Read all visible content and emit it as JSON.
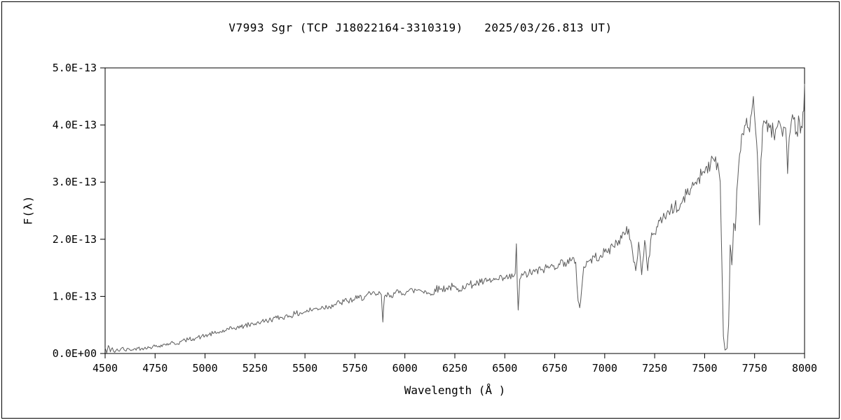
{
  "chart_data": {
    "type": "line",
    "title": "V7993 Sgr (TCP J18022164-3310319)   2025/03/26.813 UT)",
    "xlabel": "Wavelength (Å )",
    "ylabel": "F(λ)",
    "xlim": [
      4500,
      8000
    ],
    "ylim": [
      0,
      5
    ],
    "flux_scale": "1e-13",
    "grid": false,
    "legend": false,
    "line_color": "#5a5a5a",
    "axis_color": "#000000",
    "background_color": "#ffffff",
    "x_ticks": [
      4500,
      4750,
      5000,
      5250,
      5500,
      5750,
      6000,
      6250,
      6500,
      6750,
      7000,
      7250,
      7500,
      7750,
      8000
    ],
    "x_tick_labels": [
      "4500",
      "4750",
      "5000",
      "5250",
      "5500",
      "5750",
      "6000",
      "6250",
      "6500",
      "6750",
      "7000",
      "7250",
      "7500",
      "7750",
      "8000"
    ],
    "y_ticks": [
      0,
      1,
      2,
      3,
      4,
      5
    ],
    "y_tick_labels": [
      "0.0E+00",
      "1.0E-13",
      "2.0E-13",
      "3.0E-13",
      "4.0E-13",
      "5.0E-13"
    ],
    "render": {
      "sample_step": 5,
      "noise_base": 0.03,
      "noise_scale": 0.035,
      "seed": 42
    },
    "series": [
      {
        "name": "spectrum",
        "points": [
          [
            4500,
            0.1
          ],
          [
            4508,
            0.01
          ],
          [
            4516,
            0.14
          ],
          [
            4526,
            0.03
          ],
          [
            4536,
            0.1
          ],
          [
            4548,
            0.02
          ],
          [
            4560,
            0.08
          ],
          [
            4572,
            0.04
          ],
          [
            4584,
            0.1
          ],
          [
            4600,
            0.05
          ],
          [
            4620,
            0.08
          ],
          [
            4640,
            0.06
          ],
          [
            4660,
            0.1
          ],
          [
            4680,
            0.08
          ],
          [
            4700,
            0.11
          ],
          [
            4720,
            0.1
          ],
          [
            4740,
            0.13
          ],
          [
            4760,
            0.12
          ],
          [
            4780,
            0.15
          ],
          [
            4800,
            0.16
          ],
          [
            4820,
            0.17
          ],
          [
            4840,
            0.19
          ],
          [
            4860,
            0.17
          ],
          [
            4880,
            0.21
          ],
          [
            4900,
            0.23
          ],
          [
            4920,
            0.25
          ],
          [
            4940,
            0.26
          ],
          [
            4960,
            0.28
          ],
          [
            4980,
            0.29
          ],
          [
            5000,
            0.31
          ],
          [
            5020,
            0.33
          ],
          [
            5040,
            0.35
          ],
          [
            5060,
            0.36
          ],
          [
            5080,
            0.38
          ],
          [
            5100,
            0.4
          ],
          [
            5120,
            0.42
          ],
          [
            5140,
            0.44
          ],
          [
            5160,
            0.46
          ],
          [
            5180,
            0.46
          ],
          [
            5200,
            0.49
          ],
          [
            5220,
            0.5
          ],
          [
            5240,
            0.52
          ],
          [
            5260,
            0.54
          ],
          [
            5280,
            0.55
          ],
          [
            5300,
            0.57
          ],
          [
            5320,
            0.58
          ],
          [
            5340,
            0.61
          ],
          [
            5360,
            0.62
          ],
          [
            5380,
            0.63
          ],
          [
            5400,
            0.65
          ],
          [
            5420,
            0.66
          ],
          [
            5450,
            0.69
          ],
          [
            5480,
            0.71
          ],
          [
            5500,
            0.73
          ],
          [
            5530,
            0.76
          ],
          [
            5560,
            0.79
          ],
          [
            5590,
            0.81
          ],
          [
            5620,
            0.83
          ],
          [
            5650,
            0.86
          ],
          [
            5680,
            0.89
          ],
          [
            5710,
            0.92
          ],
          [
            5740,
            0.94
          ],
          [
            5770,
            0.97
          ],
          [
            5800,
            1.0
          ],
          [
            5830,
            1.03
          ],
          [
            5860,
            1.04
          ],
          [
            5882,
            1.03
          ],
          [
            5890,
            0.55
          ],
          [
            5898,
            1.0
          ],
          [
            5920,
            1.03
          ],
          [
            5950,
            1.05
          ],
          [
            5980,
            1.07
          ],
          [
            6010,
            1.09
          ],
          [
            6040,
            1.1
          ],
          [
            6070,
            1.12
          ],
          [
            6100,
            1.1
          ],
          [
            6130,
            1.02
          ],
          [
            6150,
            1.13
          ],
          [
            6180,
            1.13
          ],
          [
            6210,
            1.15
          ],
          [
            6240,
            1.17
          ],
          [
            6270,
            1.08
          ],
          [
            6290,
            1.19
          ],
          [
            6320,
            1.2
          ],
          [
            6350,
            1.22
          ],
          [
            6380,
            1.24
          ],
          [
            6410,
            1.26
          ],
          [
            6440,
            1.28
          ],
          [
            6470,
            1.29
          ],
          [
            6500,
            1.31
          ],
          [
            6520,
            1.33
          ],
          [
            6540,
            1.34
          ],
          [
            6552,
            1.4
          ],
          [
            6558,
            1.92
          ],
          [
            6563,
            1.15
          ],
          [
            6567,
            0.76
          ],
          [
            6575,
            1.3
          ],
          [
            6590,
            1.37
          ],
          [
            6620,
            1.4
          ],
          [
            6650,
            1.43
          ],
          [
            6680,
            1.46
          ],
          [
            6710,
            1.5
          ],
          [
            6740,
            1.53
          ],
          [
            6770,
            1.57
          ],
          [
            6800,
            1.6
          ],
          [
            6830,
            1.62
          ],
          [
            6855,
            1.6
          ],
          [
            6867,
            0.92
          ],
          [
            6875,
            0.8
          ],
          [
            6884,
            1.1
          ],
          [
            6895,
            1.52
          ],
          [
            6920,
            1.62
          ],
          [
            6950,
            1.68
          ],
          [
            6980,
            1.72
          ],
          [
            7010,
            1.78
          ],
          [
            7040,
            1.88
          ],
          [
            7070,
            1.98
          ],
          [
            7100,
            2.08
          ],
          [
            7120,
            2.18
          ],
          [
            7140,
            1.75
          ],
          [
            7155,
            1.45
          ],
          [
            7170,
            1.95
          ],
          [
            7185,
            1.38
          ],
          [
            7200,
            1.98
          ],
          [
            7215,
            1.45
          ],
          [
            7230,
            1.98
          ],
          [
            7245,
            2.1
          ],
          [
            7260,
            2.22
          ],
          [
            7275,
            2.32
          ],
          [
            7290,
            2.35
          ],
          [
            7310,
            2.45
          ],
          [
            7330,
            2.52
          ],
          [
            7350,
            2.58
          ],
          [
            7370,
            2.5
          ],
          [
            7390,
            2.68
          ],
          [
            7410,
            2.78
          ],
          [
            7430,
            2.88
          ],
          [
            7450,
            2.98
          ],
          [
            7470,
            3.08
          ],
          [
            7490,
            3.18
          ],
          [
            7510,
            3.28
          ],
          [
            7530,
            3.33
          ],
          [
            7550,
            3.36
          ],
          [
            7565,
            3.34
          ],
          [
            7578,
            3.0
          ],
          [
            7586,
            1.6
          ],
          [
            7594,
            0.3
          ],
          [
            7602,
            0.06
          ],
          [
            7612,
            0.09
          ],
          [
            7620,
            0.5
          ],
          [
            7628,
            1.9
          ],
          [
            7636,
            1.55
          ],
          [
            7645,
            2.28
          ],
          [
            7653,
            2.15
          ],
          [
            7661,
            2.85
          ],
          [
            7670,
            3.28
          ],
          [
            7680,
            3.55
          ],
          [
            7690,
            3.85
          ],
          [
            7705,
            4.0
          ],
          [
            7720,
            3.95
          ],
          [
            7735,
            4.2
          ],
          [
            7744,
            4.5
          ],
          [
            7752,
            4.05
          ],
          [
            7760,
            3.7
          ],
          [
            7768,
            3.1
          ],
          [
            7775,
            2.25
          ],
          [
            7782,
            3.4
          ],
          [
            7790,
            3.95
          ],
          [
            7802,
            4.05
          ],
          [
            7815,
            3.88
          ],
          [
            7830,
            4.0
          ],
          [
            7845,
            3.85
          ],
          [
            7860,
            3.95
          ],
          [
            7875,
            4.05
          ],
          [
            7890,
            3.8
          ],
          [
            7905,
            3.95
          ],
          [
            7915,
            3.15
          ],
          [
            7928,
            3.88
          ],
          [
            7945,
            4.1
          ],
          [
            7960,
            3.88
          ],
          [
            7975,
            4.05
          ],
          [
            7988,
            3.95
          ],
          [
            7996,
            4.25
          ],
          [
            8000,
            4.72
          ]
        ]
      }
    ]
  }
}
